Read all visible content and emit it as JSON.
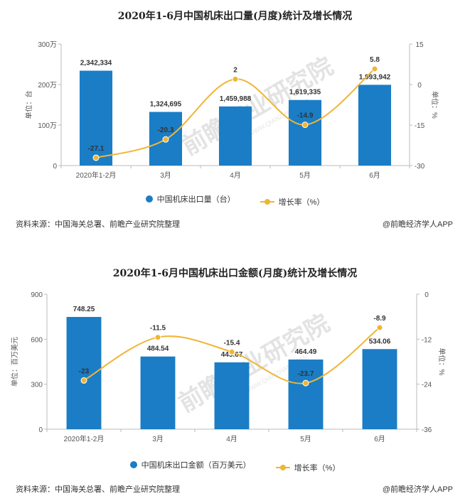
{
  "chart_data": [
    {
      "type": "bar",
      "title": "2020年1-6月中国机床出口量(月度)统计及增长情况",
      "categories": [
        "2020年1-2月",
        "3月",
        "4月",
        "5月",
        "6月"
      ],
      "series": [
        {
          "name": "中国机床出口量（台）",
          "type": "bar",
          "axis": "left",
          "color": "#1a7dc6",
          "values": [
            2342334,
            1324695,
            1459988,
            1619335,
            1993942
          ]
        },
        {
          "name": "增长率（%）",
          "type": "line",
          "axis": "right",
          "color": "#f0b535",
          "values": [
            -27.1,
            -20.3,
            2,
            -14.9,
            5.8
          ]
        }
      ],
      "bar_labels": [
        "2,342,334",
        "1,324,695",
        "1,459,988",
        "1,619,335",
        "1,993,942"
      ],
      "rate_labels": [
        "-27.1",
        "-20.3",
        "2",
        "-14.9",
        "5.8"
      ],
      "ylabel": "单位：台",
      "y2label": "单位：%",
      "ylim": [
        0,
        3000000
      ],
      "y2lim": [
        -30,
        15
      ],
      "yticks": [
        0,
        1000000,
        2000000,
        3000000
      ],
      "ytick_labels": [
        "0",
        "100万",
        "200万",
        "300万"
      ],
      "y2ticks": [
        -30,
        -15,
        0,
        15
      ],
      "y2tick_labels": [
        "-30",
        "-15",
        "0",
        "15"
      ],
      "grid": false,
      "legend": "bottom"
    },
    {
      "type": "bar",
      "title": "2020年1-6月中国机床出口金额(月度)统计及增长情况",
      "categories": [
        "2020年1-2月",
        "3月",
        "4月",
        "5月",
        "6月"
      ],
      "series": [
        {
          "name": "中国机床出口金额（百万美元）",
          "type": "bar",
          "axis": "left",
          "color": "#1a7dc6",
          "values": [
            748.25,
            484.54,
            445.67,
            464.49,
            534.06
          ]
        },
        {
          "name": "增长率（%）",
          "type": "line",
          "axis": "right",
          "color": "#f0b535",
          "values": [
            -23,
            -11.5,
            -15.4,
            -23.7,
            -8.9
          ]
        }
      ],
      "bar_labels": [
        "748.25",
        "484.54",
        "445.67",
        "464.49",
        "534.06"
      ],
      "rate_labels": [
        "-23",
        "-11.5",
        "-15.4",
        "-23.7",
        "-8.9"
      ],
      "ylabel": "单位：百万美元",
      "y2label": "单位：%",
      "ylim": [
        0,
        900
      ],
      "y2lim": [
        -36,
        0
      ],
      "yticks": [
        0,
        300,
        600,
        900
      ],
      "ytick_labels": [
        "0",
        "300",
        "600",
        "900"
      ],
      "y2ticks": [
        -36,
        -24,
        -12,
        0
      ],
      "y2tick_labels": [
        "-36",
        "-24",
        "-12",
        "0"
      ],
      "grid": false,
      "legend": "bottom"
    }
  ],
  "footer": {
    "source": "资料来源：中国海关总署、前瞻产业研究院整理",
    "brand": "@前瞻经济学人APP"
  },
  "watermark": {
    "text": "前瞻产业研究院",
    "sub": "WWW.QIANZHAN.COM"
  }
}
